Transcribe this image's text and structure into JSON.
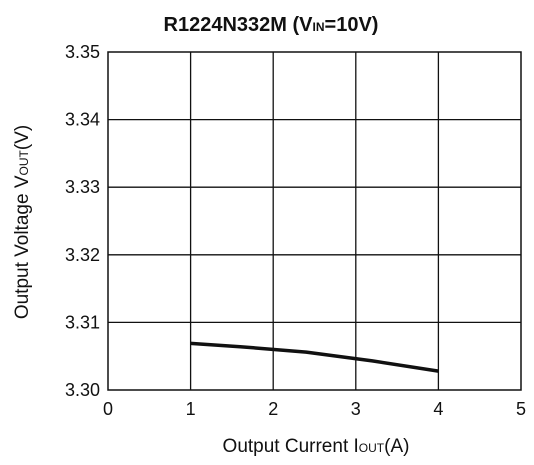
{
  "chart_data": {
    "type": "line",
    "title": {
      "main": "R1224N332M (V",
      "sub": "IN",
      "tail": "=10V)"
    },
    "xlabel": {
      "main": "Output Current I",
      "sub": "OUT",
      "tail": "(A)"
    },
    "ylabel": {
      "main": "Output Voltage V",
      "sub": "OUT",
      "tail": "(V)"
    },
    "xlim": [
      0,
      5
    ],
    "ylim": [
      3.3,
      3.35
    ],
    "x_ticks": [
      "0",
      "1",
      "2",
      "3",
      "4",
      "5"
    ],
    "y_ticks": [
      "3.30",
      "3.31",
      "3.32",
      "3.33",
      "3.34",
      "3.35"
    ],
    "grid": true,
    "series": [
      {
        "x": [
          1.0,
          1.6,
          2.4,
          3.2,
          4.0
        ],
        "y": [
          3.3069,
          3.3064,
          3.3056,
          3.3043,
          3.3028
        ]
      }
    ],
    "colors": {
      "line": "#111111",
      "grid": "#111111"
    }
  }
}
